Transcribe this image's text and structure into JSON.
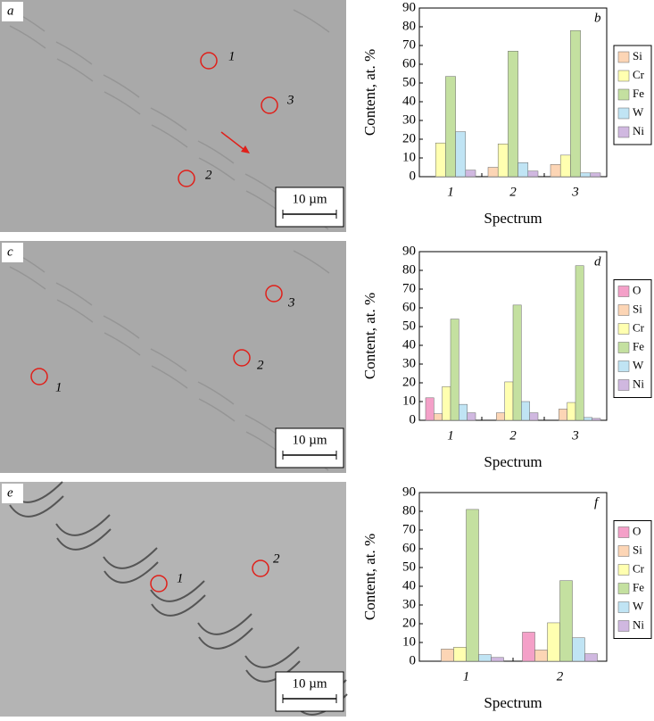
{
  "images": [
    {
      "label": "a",
      "markers": [
        "1",
        "3",
        "2"
      ],
      "scale": "10 µm"
    },
    {
      "label": "c",
      "markers": [
        "3",
        "2",
        "1"
      ],
      "scale": "10 µm"
    },
    {
      "label": "e",
      "markers": [
        "1",
        "2"
      ],
      "scale": "10 µm"
    }
  ],
  "chart_data": [
    {
      "type": "bar",
      "annotation": "b",
      "xlabel": "Spectrum",
      "ylabel": "Content, at. %",
      "categories": [
        "1",
        "2",
        "3"
      ],
      "ylim": [
        0,
        90
      ],
      "yticks": [
        0,
        10,
        20,
        30,
        40,
        50,
        60,
        70,
        80,
        90
      ],
      "series": [
        {
          "name": "Si",
          "color": "#fcd5b5",
          "values": [
            0,
            5,
            6.5
          ]
        },
        {
          "name": "Cr",
          "color": "#ffffb0",
          "values": [
            18,
            17.5,
            11.5
          ]
        },
        {
          "name": "Fe",
          "color": "#c4e0a0",
          "values": [
            53.5,
            67,
            78
          ]
        },
        {
          "name": "W",
          "color": "#c0e4f4",
          "values": [
            24,
            7.5,
            2
          ]
        },
        {
          "name": "Ni",
          "color": "#d0b8e0",
          "values": [
            3.5,
            3,
            2
          ]
        }
      ]
    },
    {
      "type": "bar",
      "annotation": "d",
      "xlabel": "Spectrum",
      "ylabel": "Content, at. %",
      "categories": [
        "1",
        "2",
        "3"
      ],
      "ylim": [
        0,
        90
      ],
      "yticks": [
        0,
        10,
        20,
        30,
        40,
        50,
        60,
        70,
        80,
        90
      ],
      "series": [
        {
          "name": "O",
          "color": "#f4a0c8",
          "values": [
            12,
            0,
            0
          ]
        },
        {
          "name": "Si",
          "color": "#fcd5b5",
          "values": [
            3.5,
            4,
            6
          ]
        },
        {
          "name": "Cr",
          "color": "#ffffb0",
          "values": [
            18,
            20.5,
            9.5
          ]
        },
        {
          "name": "Fe",
          "color": "#c4e0a0",
          "values": [
            54,
            61.5,
            82.5
          ]
        },
        {
          "name": "W",
          "color": "#c0e4f4",
          "values": [
            8.5,
            10,
            1.5
          ]
        },
        {
          "name": "Ni",
          "color": "#d0b8e0",
          "values": [
            4,
            4,
            1
          ]
        }
      ]
    },
    {
      "type": "bar",
      "annotation": "f",
      "xlabel": "Spectrum",
      "ylabel": "Content, at. %",
      "categories": [
        "1",
        "2"
      ],
      "ylim": [
        0,
        90
      ],
      "yticks": [
        0,
        10,
        20,
        30,
        40,
        50,
        60,
        70,
        80,
        90
      ],
      "series": [
        {
          "name": "O",
          "color": "#f4a0c8",
          "values": [
            0,
            15.5
          ]
        },
        {
          "name": "Si",
          "color": "#fcd5b5",
          "values": [
            6.5,
            6
          ]
        },
        {
          "name": "Cr",
          "color": "#ffffb0",
          "values": [
            7.5,
            20.5
          ]
        },
        {
          "name": "Fe",
          "color": "#c4e0a0",
          "values": [
            81,
            43
          ]
        },
        {
          "name": "W",
          "color": "#c0e4f4",
          "values": [
            3.5,
            12.5
          ]
        },
        {
          "name": "Ni",
          "color": "#d0b8e0",
          "values": [
            2,
            4
          ]
        }
      ]
    }
  ]
}
